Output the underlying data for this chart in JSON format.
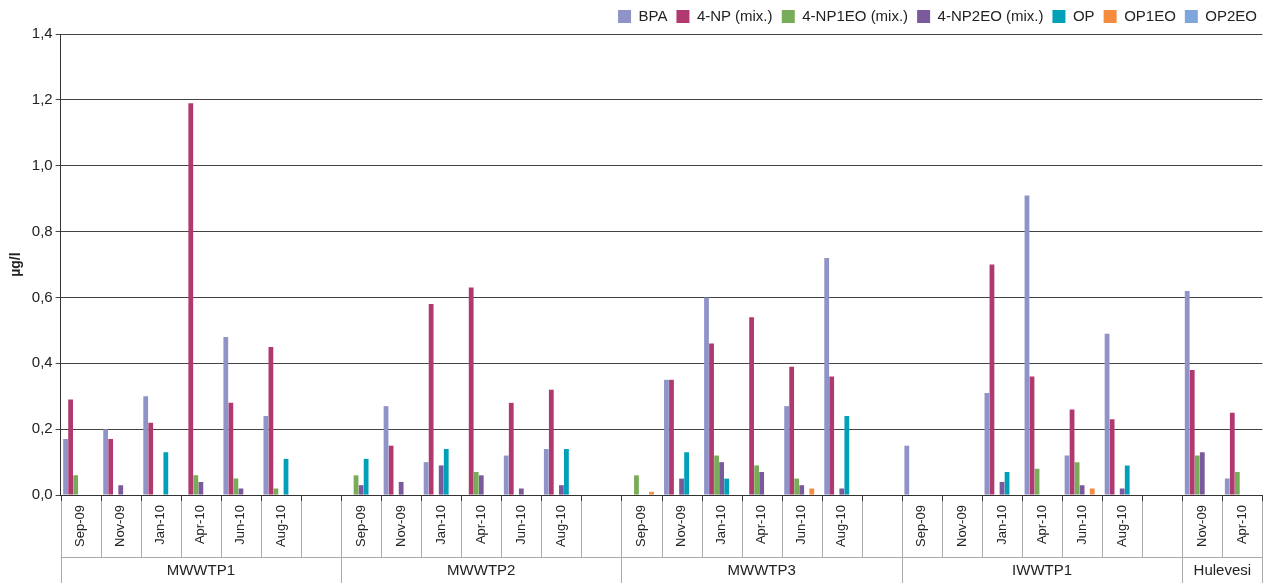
{
  "chart_data": {
    "type": "bar",
    "ylabel": "µg/l",
    "categories": [
      "Sep-09",
      "Nov-09",
      "Jan-10",
      "Apr-10",
      "Jun-10",
      "Aug-10",
      null,
      "Sep-09",
      "Nov-09",
      "Jan-10",
      "Apr-10",
      "Jun-10",
      "Aug-10",
      null,
      "Sep-09",
      "Nov-09",
      "Jan-10",
      "Apr-10",
      "Jun-10",
      "Aug-10",
      null,
      "Sep-09",
      "Nov-09",
      "Jan-10",
      "Apr-10",
      "Jun-10",
      "Aug-10",
      null,
      "Nov-09",
      "Apr-10"
    ],
    "series": [
      {
        "name": "BPA",
        "color": "#8f93c8",
        "values": [
          0.17,
          0.2,
          0.3,
          0,
          0.48,
          0.24,
          null,
          0,
          0.27,
          0.1,
          0,
          0.12,
          0.14,
          null,
          0,
          0.35,
          0.6,
          0,
          0.27,
          0.72,
          null,
          0.15,
          0,
          0.31,
          0.91,
          0.12,
          0.49,
          null,
          0.62,
          0.05
        ]
      },
      {
        "name": "4-NP (mix.)",
        "color": "#b03a70",
        "values": [
          0.29,
          0.17,
          0.22,
          1.19,
          0.28,
          0.45,
          null,
          0,
          0.15,
          0.58,
          0.63,
          0.28,
          0.32,
          null,
          0,
          0.35,
          0.46,
          0.54,
          0.39,
          0.36,
          null,
          0,
          0,
          0.7,
          0.36,
          0.26,
          0.23,
          null,
          0.38,
          0.25
        ]
      },
      {
        "name": "4-NP1EO (mix.)",
        "color": "#78ac58",
        "values": [
          0.06,
          0,
          0,
          0.06,
          0.05,
          0.02,
          null,
          0.06,
          0,
          0,
          0.07,
          0,
          0,
          null,
          0.06,
          0,
          0.12,
          0.09,
          0.05,
          0,
          null,
          0,
          0,
          0,
          0.08,
          0.1,
          0,
          null,
          0.12,
          0.07
        ]
      },
      {
        "name": "4-NP2EO (mix.)",
        "color": "#7a5a9c",
        "values": [
          0,
          0.03,
          0,
          0.04,
          0.02,
          0,
          null,
          0.03,
          0.04,
          0.09,
          0.06,
          0.02,
          0.03,
          null,
          0,
          0.05,
          0.1,
          0.07,
          0.03,
          0.02,
          null,
          0,
          0,
          0.04,
          0,
          0.03,
          0.02,
          null,
          0.13,
          0
        ]
      },
      {
        "name": "OP",
        "color": "#00a0b8",
        "values": [
          0,
          0,
          0.13,
          0,
          0,
          0.11,
          null,
          0.11,
          0,
          0.14,
          0,
          0,
          0.14,
          null,
          0,
          0.13,
          0.05,
          0,
          0,
          0.24,
          null,
          0,
          0,
          0.07,
          0,
          0,
          0.09,
          null,
          0,
          0
        ]
      },
      {
        "name": "OP1EO",
        "color": "#f58b3c",
        "values": [
          0,
          0,
          0,
          0,
          0,
          0,
          null,
          0,
          0,
          0,
          0,
          0,
          0,
          null,
          0.01,
          0,
          0,
          0,
          0.02,
          0,
          null,
          0,
          0,
          0,
          0,
          0.02,
          0,
          null,
          0,
          0
        ]
      },
      {
        "name": "OP2EO",
        "color": "#7ea6dc",
        "values": [
          0,
          0,
          0,
          0,
          0,
          0,
          null,
          0,
          0,
          0,
          0,
          0,
          0,
          null,
          0,
          0,
          0,
          0,
          0,
          0,
          null,
          0,
          0,
          0,
          0,
          0,
          0,
          null,
          0,
          0
        ]
      }
    ],
    "ylim": [
      0,
      1.4
    ],
    "yticks": [
      {
        "value": 0,
        "label": "0,0"
      },
      {
        "value": 0.2,
        "label": "0,2"
      },
      {
        "value": 0.4,
        "label": "0,4"
      },
      {
        "value": 0.6,
        "label": "0,6"
      },
      {
        "value": 0.8,
        "label": "0,8"
      },
      {
        "value": 1,
        "label": "1,0"
      },
      {
        "value": 1.2,
        "label": "1,2"
      },
      {
        "value": 1.4,
        "label": "1,4"
      }
    ],
    "grid": "y",
    "legend": "top right",
    "annotations": [
      "MWWTP1",
      "MWWTP2",
      "MWWTP3",
      "IWWTP1",
      "Hulevesi"
    ]
  }
}
